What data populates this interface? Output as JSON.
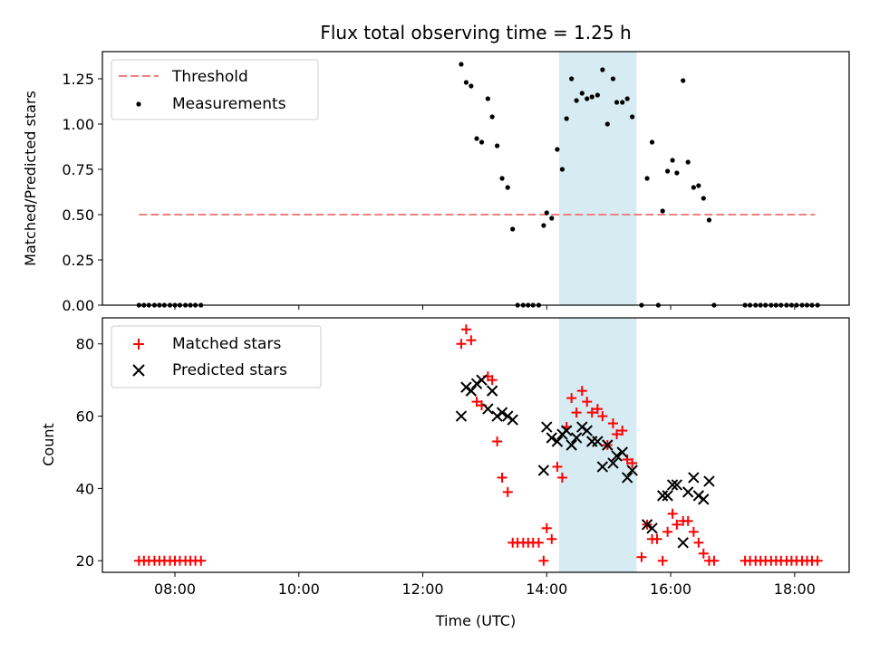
{
  "chart_data": [
    {
      "type": "scatter",
      "title": "Flux total observing time = 1.25 h",
      "xlabel": "",
      "ylabel": "Matched/Predicted stars",
      "xlim": [
        6.83,
        18.88
      ],
      "ylim": [
        0.0,
        1.4
      ],
      "yticks": [
        0.0,
        0.25,
        0.5,
        0.75,
        1.0,
        1.25
      ],
      "ytick_labels": [
        "0.00",
        "0.25",
        "0.50",
        "0.75",
        "1.00",
        "1.25"
      ],
      "shaded_span": {
        "x": [
          14.2,
          15.45
        ],
        "color": "#add8e6",
        "alpha": 0.5
      },
      "legend": {
        "location": "upper-left",
        "entries": [
          "Threshold",
          "Measurements"
        ]
      },
      "series": [
        {
          "name": "Threshold",
          "kind": "dashed-line",
          "color": "#f08080",
          "x": [
            7.42,
            18.33
          ],
          "y": [
            0.5,
            0.5
          ]
        },
        {
          "name": "Measurements",
          "kind": "dots",
          "color": "#000000",
          "points": [
            [
              7.42,
              0
            ],
            [
              7.5,
              0
            ],
            [
              7.58,
              0
            ],
            [
              7.67,
              0
            ],
            [
              7.75,
              0
            ],
            [
              7.83,
              0
            ],
            [
              7.92,
              0
            ],
            [
              8.0,
              0
            ],
            [
              8.08,
              0
            ],
            [
              8.17,
              0
            ],
            [
              8.25,
              0
            ],
            [
              8.33,
              0
            ],
            [
              8.42,
              0
            ],
            [
              12.62,
              1.33
            ],
            [
              12.7,
              1.23
            ],
            [
              12.78,
              1.21
            ],
            [
              12.87,
              0.92
            ],
            [
              12.95,
              0.9
            ],
            [
              13.05,
              1.14
            ],
            [
              13.12,
              1.04
            ],
            [
              13.2,
              0.88
            ],
            [
              13.28,
              0.7
            ],
            [
              13.37,
              0.65
            ],
            [
              13.45,
              0.42
            ],
            [
              13.53,
              0
            ],
            [
              13.62,
              0
            ],
            [
              13.7,
              0
            ],
            [
              13.78,
              0
            ],
            [
              13.87,
              0
            ],
            [
              13.95,
              0.44
            ],
            [
              14.0,
              0.51
            ],
            [
              14.08,
              0.48
            ],
            [
              14.17,
              0.86
            ],
            [
              14.25,
              0.75
            ],
            [
              14.32,
              1.03
            ],
            [
              14.4,
              1.25
            ],
            [
              14.48,
              1.13
            ],
            [
              14.57,
              1.17
            ],
            [
              14.65,
              1.14
            ],
            [
              14.73,
              1.15
            ],
            [
              14.82,
              1.16
            ],
            [
              14.9,
              1.3
            ],
            [
              14.98,
              1.0
            ],
            [
              15.07,
              1.25
            ],
            [
              15.13,
              1.12
            ],
            [
              15.22,
              1.12
            ],
            [
              15.3,
              1.14
            ],
            [
              15.38,
              1.04
            ],
            [
              15.53,
              0
            ],
            [
              15.62,
              0.7
            ],
            [
              15.7,
              0.9
            ],
            [
              15.8,
              0
            ],
            [
              15.87,
              0.52
            ],
            [
              15.95,
              0.74
            ],
            [
              16.03,
              0.8
            ],
            [
              16.1,
              0.73
            ],
            [
              16.2,
              1.24
            ],
            [
              16.28,
              0.79
            ],
            [
              16.37,
              0.65
            ],
            [
              16.45,
              0.66
            ],
            [
              16.53,
              0.59
            ],
            [
              16.62,
              0.47
            ],
            [
              16.7,
              0
            ],
            [
              17.2,
              0
            ],
            [
              17.28,
              0
            ],
            [
              17.37,
              0
            ],
            [
              17.45,
              0
            ],
            [
              17.53,
              0
            ],
            [
              17.62,
              0
            ],
            [
              17.7,
              0
            ],
            [
              17.78,
              0
            ],
            [
              17.87,
              0
            ],
            [
              17.95,
              0
            ],
            [
              18.03,
              0
            ],
            [
              18.12,
              0
            ],
            [
              18.2,
              0
            ],
            [
              18.28,
              0
            ],
            [
              18.37,
              0
            ]
          ]
        }
      ]
    },
    {
      "type": "scatter",
      "title": "",
      "xlabel": "Time (UTC)",
      "ylabel": "Count",
      "xlim": [
        6.83,
        18.88
      ],
      "ylim": [
        16.8,
        87.2
      ],
      "xticks": [
        8,
        10,
        12,
        14,
        16,
        18
      ],
      "xtick_labels": [
        "08:00",
        "10:00",
        "12:00",
        "14:00",
        "16:00",
        "18:00"
      ],
      "yticks": [
        20,
        40,
        60,
        80
      ],
      "ytick_labels": [
        "20",
        "40",
        "60",
        "80"
      ],
      "shaded_span": {
        "x": [
          14.2,
          15.45
        ],
        "color": "#add8e6",
        "alpha": 0.5
      },
      "legend": {
        "location": "upper-left",
        "entries": [
          "Matched stars",
          "Predicted stars"
        ]
      },
      "series": [
        {
          "name": "Matched stars",
          "kind": "plus",
          "color": "#ff0000",
          "points": [
            [
              7.42,
              20
            ],
            [
              7.5,
              20
            ],
            [
              7.58,
              20
            ],
            [
              7.67,
              20
            ],
            [
              7.75,
              20
            ],
            [
              7.83,
              20
            ],
            [
              7.92,
              20
            ],
            [
              8.0,
              20
            ],
            [
              8.08,
              20
            ],
            [
              8.17,
              20
            ],
            [
              8.25,
              20
            ],
            [
              8.33,
              20
            ],
            [
              8.42,
              20
            ],
            [
              12.62,
              80
            ],
            [
              12.7,
              84
            ],
            [
              12.78,
              81
            ],
            [
              12.87,
              64
            ],
            [
              12.95,
              63
            ],
            [
              13.05,
              71
            ],
            [
              13.12,
              70
            ],
            [
              13.2,
              53
            ],
            [
              13.28,
              43
            ],
            [
              13.37,
              39
            ],
            [
              13.45,
              25
            ],
            [
              13.53,
              25
            ],
            [
              13.62,
              25
            ],
            [
              13.7,
              25
            ],
            [
              13.78,
              25
            ],
            [
              13.87,
              25
            ],
            [
              13.95,
              20
            ],
            [
              14.0,
              29
            ],
            [
              14.08,
              26
            ],
            [
              14.17,
              46
            ],
            [
              14.25,
              43
            ],
            [
              14.32,
              57
            ],
            [
              14.4,
              65
            ],
            [
              14.48,
              61
            ],
            [
              14.57,
              67
            ],
            [
              14.65,
              64
            ],
            [
              14.73,
              61
            ],
            [
              14.82,
              62
            ],
            [
              14.9,
              60
            ],
            [
              14.98,
              52
            ],
            [
              15.07,
              58
            ],
            [
              15.13,
              55
            ],
            [
              15.22,
              56
            ],
            [
              15.3,
              48
            ],
            [
              15.38,
              47
            ],
            [
              15.53,
              21
            ],
            [
              15.62,
              30
            ],
            [
              15.7,
              26
            ],
            [
              15.78,
              26
            ],
            [
              15.87,
              20
            ],
            [
              15.95,
              28
            ],
            [
              16.03,
              33
            ],
            [
              16.1,
              30
            ],
            [
              16.2,
              31
            ],
            [
              16.28,
              31
            ],
            [
              16.37,
              28
            ],
            [
              16.45,
              25
            ],
            [
              16.53,
              22
            ],
            [
              16.62,
              20
            ],
            [
              16.7,
              20
            ],
            [
              17.2,
              20
            ],
            [
              17.28,
              20
            ],
            [
              17.37,
              20
            ],
            [
              17.45,
              20
            ],
            [
              17.53,
              20
            ],
            [
              17.62,
              20
            ],
            [
              17.7,
              20
            ],
            [
              17.78,
              20
            ],
            [
              17.87,
              20
            ],
            [
              17.95,
              20
            ],
            [
              18.03,
              20
            ],
            [
              18.12,
              20
            ],
            [
              18.2,
              20
            ],
            [
              18.28,
              20
            ],
            [
              18.37,
              20
            ]
          ]
        },
        {
          "name": "Predicted stars",
          "kind": "x",
          "color": "#000000",
          "points": [
            [
              12.62,
              60
            ],
            [
              12.7,
              68
            ],
            [
              12.78,
              67
            ],
            [
              12.87,
              69
            ],
            [
              12.95,
              70
            ],
            [
              13.05,
              62
            ],
            [
              13.12,
              67
            ],
            [
              13.2,
              60
            ],
            [
              13.28,
              61
            ],
            [
              13.37,
              60
            ],
            [
              13.45,
              59
            ],
            [
              13.95,
              45
            ],
            [
              14.0,
              57
            ],
            [
              14.08,
              54
            ],
            [
              14.17,
              53
            ],
            [
              14.25,
              55
            ],
            [
              14.32,
              56
            ],
            [
              14.4,
              52
            ],
            [
              14.48,
              54
            ],
            [
              14.57,
              57
            ],
            [
              14.65,
              56
            ],
            [
              14.73,
              53
            ],
            [
              14.82,
              53
            ],
            [
              14.9,
              46
            ],
            [
              14.98,
              52
            ],
            [
              15.07,
              47
            ],
            [
              15.13,
              49
            ],
            [
              15.22,
              50
            ],
            [
              15.3,
              43
            ],
            [
              15.38,
              45
            ],
            [
              15.62,
              30
            ],
            [
              15.7,
              29
            ],
            [
              15.87,
              38
            ],
            [
              15.95,
              38
            ],
            [
              16.03,
              41
            ],
            [
              16.1,
              41
            ],
            [
              16.2,
              25
            ],
            [
              16.28,
              39
            ],
            [
              16.37,
              43
            ],
            [
              16.45,
              38
            ],
            [
              16.53,
              37
            ],
            [
              16.62,
              42
            ]
          ]
        }
      ]
    }
  ]
}
